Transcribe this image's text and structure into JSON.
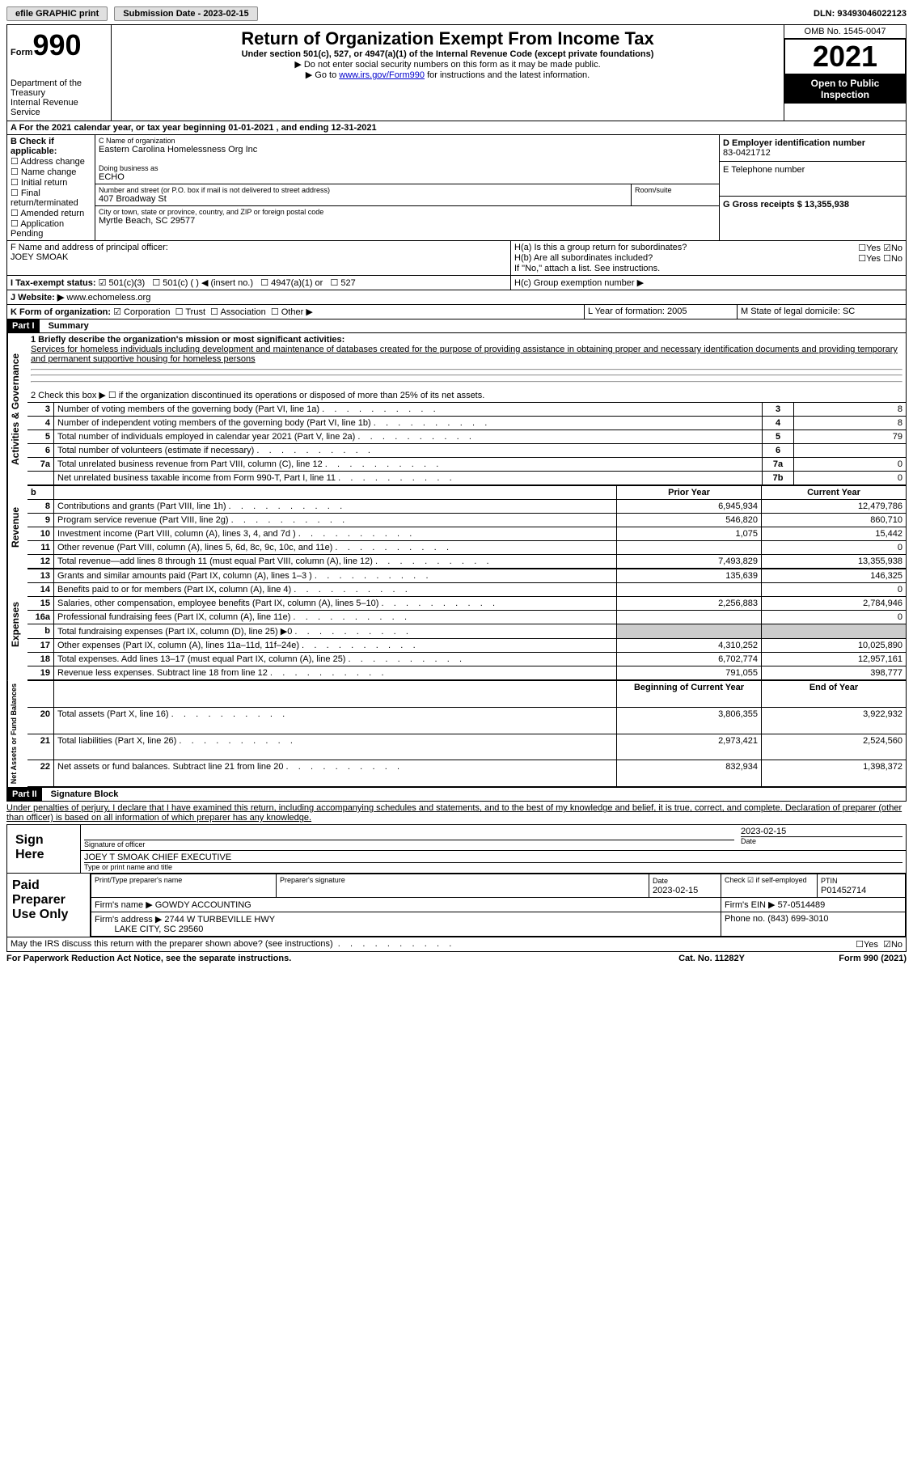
{
  "topbar": {
    "efile": "efile GRAPHIC print",
    "submission": "Submission Date - 2023-02-15",
    "dln": "DLN: 93493046022123"
  },
  "header": {
    "form_label": "Form",
    "form_num": "990",
    "dept": "Department of the Treasury",
    "irs": "Internal Revenue Service",
    "title": "Return of Organization Exempt From Income Tax",
    "sub1": "Under section 501(c), 527, or 4947(a)(1) of the Internal Revenue Code (except private foundations)",
    "sub2": "▶ Do not enter social security numbers on this form as it may be made public.",
    "sub3_pre": "▶ Go to ",
    "sub3_link": "www.irs.gov/Form990",
    "sub3_post": " for instructions and the latest information.",
    "omb": "OMB No. 1545-0047",
    "year": "2021",
    "open": "Open to Public Inspection"
  },
  "sectionA": {
    "a_line": "A For the 2021 calendar year, or tax year beginning 01-01-2021   , and ending 12-31-2021",
    "b_label": "B Check if applicable:",
    "b_opts": [
      "Address change",
      "Name change",
      "Initial return",
      "Final return/terminated",
      "Amended return",
      "Application Pending"
    ],
    "c_label": "C Name of organization",
    "c_name": "Eastern Carolina Homelessness Org Inc",
    "dba_label": "Doing business as",
    "dba": "ECHO",
    "street_label": "Number and street (or P.O. box if mail is not delivered to street address)",
    "street": "407 Broadway St",
    "room_label": "Room/suite",
    "city_label": "City or town, state or province, country, and ZIP or foreign postal code",
    "city": "Myrtle Beach, SC  29577",
    "d_label": "D Employer identification number",
    "d_ein": "83-0421712",
    "e_label": "E Telephone number",
    "g_label": "G Gross receipts $ 13,355,938",
    "f_label": "F  Name and address of principal officer:",
    "f_name": "JOEY SMOAK",
    "ha_label": "H(a)  Is this a group return for subordinates?",
    "hb_label": "H(b)  Are all subordinates included?",
    "hb_note": "If \"No,\" attach a list. See instructions.",
    "hc_label": "H(c)  Group exemption number ▶",
    "yes": "Yes",
    "no": "No",
    "i_label": "I  Tax-exempt status:",
    "i_opts": [
      "501(c)(3)",
      "501(c) (  ) ◀ (insert no.)",
      "4947(a)(1) or",
      "527"
    ],
    "j_label": "J Website: ▶",
    "j_site": "www.echomeless.org",
    "k_label": "K Form of organization:",
    "k_opts": [
      "Corporation",
      "Trust",
      "Association",
      "Other ▶"
    ],
    "l_label": "L Year of formation: 2005",
    "m_label": "M State of legal domicile: SC"
  },
  "part1": {
    "header": "Part I",
    "title": "Summary",
    "l1_label": "1  Briefly describe the organization's mission or most significant activities:",
    "l1_text": "Services for homeless individuals including development and maintenance of databases created for the purpose of providing assistance in obtaining proper and necessary identification documents and providing temporary and permanent supportive housing for homeless persons",
    "l2": "2   Check this box ▶ ☐  if the organization discontinued its operations or disposed of more than 25% of its net assets.",
    "rows_gov": [
      {
        "n": "3",
        "t": "Number of voting members of the governing body (Part VI, line 1a)",
        "box": "3",
        "v": "8"
      },
      {
        "n": "4",
        "t": "Number of independent voting members of the governing body (Part VI, line 1b)",
        "box": "4",
        "v": "8"
      },
      {
        "n": "5",
        "t": "Total number of individuals employed in calendar year 2021 (Part V, line 2a)",
        "box": "5",
        "v": "79"
      },
      {
        "n": "6",
        "t": "Total number of volunteers (estimate if necessary)",
        "box": "6",
        "v": ""
      },
      {
        "n": "7a",
        "t": "Total unrelated business revenue from Part VIII, column (C), line 12",
        "box": "7a",
        "v": "0"
      },
      {
        "n": "",
        "t": "Net unrelated business taxable income from Form 990-T, Part I, line 11",
        "box": "7b",
        "v": "0"
      }
    ],
    "col_prior": "Prior Year",
    "col_current": "Current Year",
    "rev": [
      {
        "n": "b",
        "t": "",
        "p": "",
        "c": ""
      },
      {
        "n": "8",
        "t": "Contributions and grants (Part VIII, line 1h)",
        "p": "6,945,934",
        "c": "12,479,786"
      },
      {
        "n": "9",
        "t": "Program service revenue (Part VIII, line 2g)",
        "p": "546,820",
        "c": "860,710"
      },
      {
        "n": "10",
        "t": "Investment income (Part VIII, column (A), lines 3, 4, and 7d )",
        "p": "1,075",
        "c": "15,442"
      },
      {
        "n": "11",
        "t": "Other revenue (Part VIII, column (A), lines 5, 6d, 8c, 9c, 10c, and 11e)",
        "p": "",
        "c": "0"
      },
      {
        "n": "12",
        "t": "Total revenue—add lines 8 through 11 (must equal Part VIII, column (A), line 12)",
        "p": "7,493,829",
        "c": "13,355,938"
      }
    ],
    "exp": [
      {
        "n": "13",
        "t": "Grants and similar amounts paid (Part IX, column (A), lines 1–3 )",
        "p": "135,639",
        "c": "146,325"
      },
      {
        "n": "14",
        "t": "Benefits paid to or for members (Part IX, column (A), line 4)",
        "p": "",
        "c": "0"
      },
      {
        "n": "15",
        "t": "Salaries, other compensation, employee benefits (Part IX, column (A), lines 5–10)",
        "p": "2,256,883",
        "c": "2,784,946"
      },
      {
        "n": "16a",
        "t": "Professional fundraising fees (Part IX, column (A), line 11e)",
        "p": "",
        "c": "0"
      },
      {
        "n": "b",
        "t": "Total fundraising expenses (Part IX, column (D), line 25) ▶0",
        "p": "grey",
        "c": "grey"
      },
      {
        "n": "17",
        "t": "Other expenses (Part IX, column (A), lines 11a–11d, 11f–24e)",
        "p": "4,310,252",
        "c": "10,025,890"
      },
      {
        "n": "18",
        "t": "Total expenses. Add lines 13–17 (must equal Part IX, column (A), line 25)",
        "p": "6,702,774",
        "c": "12,957,161"
      },
      {
        "n": "19",
        "t": "Revenue less expenses. Subtract line 18 from line 12",
        "p": "791,055",
        "c": "398,777"
      }
    ],
    "col_begin": "Beginning of Current Year",
    "col_end": "End of Year",
    "net": [
      {
        "n": "20",
        "t": "Total assets (Part X, line 16)",
        "p": "3,806,355",
        "c": "3,922,932"
      },
      {
        "n": "21",
        "t": "Total liabilities (Part X, line 26)",
        "p": "2,973,421",
        "c": "2,524,560"
      },
      {
        "n": "22",
        "t": "Net assets or fund balances. Subtract line 21 from line 20",
        "p": "832,934",
        "c": "1,398,372"
      }
    ],
    "vlabels": {
      "gov": "Activities & Governance",
      "rev": "Revenue",
      "exp": "Expenses",
      "net": "Net Assets or Fund Balances"
    }
  },
  "part2": {
    "header": "Part II",
    "title": "Signature Block",
    "decl": "Under penalties of perjury, I declare that I have examined this return, including accompanying schedules and statements, and to the best of my knowledge and belief, it is true, correct, and complete. Declaration of preparer (other than officer) is based on all information of which preparer has any knowledge.",
    "sign_here": "Sign Here",
    "sig_officer": "Signature of officer",
    "sig_date": "2023-02-15",
    "date_l": "Date",
    "officer_name": "JOEY T SMOAK  CHIEF EXECUTIVE",
    "type_name": "Type or print name and title",
    "paid": "Paid Preparer Use Only",
    "prep_name_l": "Print/Type preparer's name",
    "prep_sig_l": "Preparer's signature",
    "prep_date_l": "Date",
    "prep_date": "2023-02-15",
    "check_l": "Check ☑ if self-employed",
    "ptin_l": "PTIN",
    "ptin": "P01452714",
    "firm_name_l": "Firm's name    ▶",
    "firm_name": "GOWDY ACCOUNTING",
    "firm_ein_l": "Firm's EIN ▶",
    "firm_ein": "57-0514489",
    "firm_addr_l": "Firm's address ▶",
    "firm_addr1": "2744 W TURBEVILLE HWY",
    "firm_addr2": "LAKE CITY, SC  29560",
    "phone_l": "Phone no.",
    "phone": "(843) 699-3010",
    "discuss": "May the IRS discuss this return with the preparer shown above? (see instructions)",
    "pra": "For Paperwork Reduction Act Notice, see the separate instructions.",
    "cat": "Cat. No. 11282Y",
    "foot": "Form 990 (2021)"
  }
}
